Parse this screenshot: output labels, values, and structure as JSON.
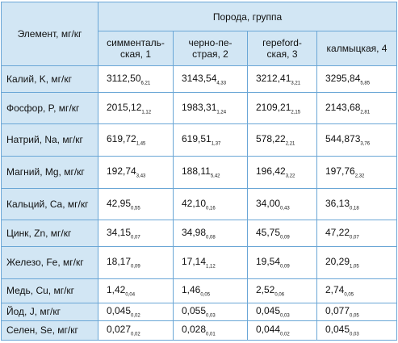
{
  "header": {
    "element": "Элемент, мг/кг",
    "group": "Порода, группа",
    "breeds": [
      "симменталь-ская, 1",
      "черно-пе-страя, 2",
      "гереford-ская, 3",
      "калмыцкая, 4"
    ]
  },
  "rows": [
    {
      "label": "Калий, K, мг/кг",
      "cells": [
        {
          "value": "3112,50",
          "error": "6,21"
        },
        {
          "value": "3143,54",
          "error": "4,33"
        },
        {
          "value": "3212,41",
          "error": "3,21"
        },
        {
          "value": "3295,84",
          "error": "5,85"
        }
      ]
    },
    {
      "label": "Фосфор, P, мг/кг",
      "cells": [
        {
          "value": "2015,12",
          "error": "1,12"
        },
        {
          "value": "1983,31",
          "error": "1,24"
        },
        {
          "value": "2109,21",
          "error": "2,15"
        },
        {
          "value": "2143,68",
          "error": "2,81"
        }
      ]
    },
    {
      "label": "Натрий, Na, мг/кг",
      "cells": [
        {
          "value": "619,72",
          "error": "1,45"
        },
        {
          "value": "619,51",
          "error": "1,37"
        },
        {
          "value": "578,22",
          "error": "2,21"
        },
        {
          "value": "544,873",
          "error": "3,76"
        }
      ]
    },
    {
      "label": "Магний, Mg, мг/кг",
      "cells": [
        {
          "value": "192,74",
          "error": "3,43"
        },
        {
          "value": "188,11",
          "error": "5,42"
        },
        {
          "value": "196,42",
          "error": "3,22"
        },
        {
          "value": "197,76",
          "error": "2,32"
        }
      ]
    },
    {
      "label": "Кальций, Ca, мг/кг",
      "cells": [
        {
          "value": "42,95",
          "error": "0,55"
        },
        {
          "value": "42,10",
          "error": "0,16"
        },
        {
          "value": "34,00",
          "error": "0,43"
        },
        {
          "value": "36,13",
          "error": "0,18"
        }
      ]
    },
    {
      "label": "Цинк, Zn, мг/кг",
      "cells": [
        {
          "value": "34,15",
          "error": "0,07"
        },
        {
          "value": "34,98",
          "error": "0,08"
        },
        {
          "value": "45,75",
          "error": "0,09"
        },
        {
          "value": "47,22",
          "error": "0,07"
        }
      ]
    },
    {
      "label": "Железо, Fe, мг/кг",
      "cells": [
        {
          "value": "18,17",
          "error": "0,09"
        },
        {
          "value": "17,14",
          "error": "1,12"
        },
        {
          "value": "19,54",
          "error": "0,09"
        },
        {
          "value": "20,29",
          "error": "1,05"
        }
      ]
    },
    {
      "label": "Медь, Cu, мг/кг",
      "cells": [
        {
          "value": "1,42",
          "error": "0,04"
        },
        {
          "value": "1,46",
          "error": "0,05"
        },
        {
          "value": "2,52",
          "error": "0,06"
        },
        {
          "value": "2,74",
          "error": "0,05"
        }
      ]
    },
    {
      "label": "Йод, J, мг/кг",
      "cells": [
        {
          "value": "0,045",
          "error": "0,02"
        },
        {
          "value": "0,055",
          "error": "0,03"
        },
        {
          "value": "0,045",
          "error": "0,03"
        },
        {
          "value": "0,077",
          "error": "0,05"
        }
      ]
    },
    {
      "label": "Селен, Se, мг/кг",
      "cells": [
        {
          "value": "0,027",
          "error": "0,02"
        },
        {
          "value": "0,028",
          "error": "0,01"
        },
        {
          "value": "0,044",
          "error": "0,02"
        },
        {
          "value": "0,045",
          "error": "0,03"
        }
      ]
    }
  ]
}
